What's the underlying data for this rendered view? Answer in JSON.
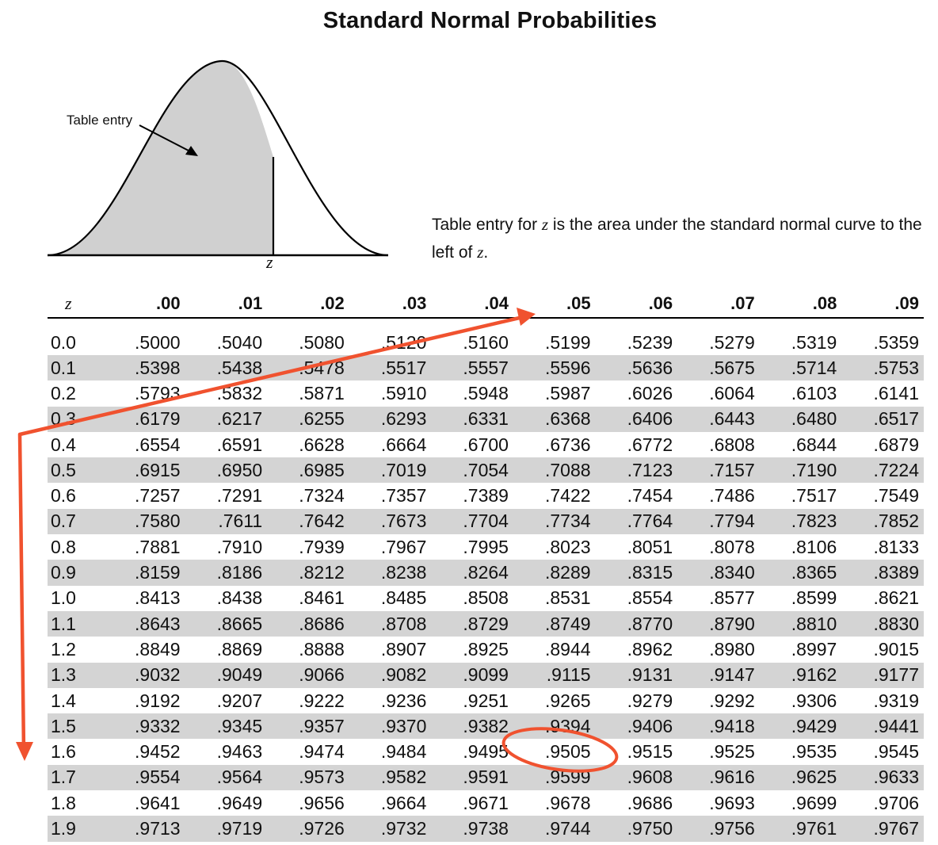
{
  "title": "Standard Normal Probabilities",
  "figure": {
    "entry_label": "Table entry",
    "z_label": "z"
  },
  "caption": {
    "before_z": "Table entry for ",
    "z1": "z",
    "middle": " is the area under the standard normal curve to the left of ",
    "z2": "z",
    "end": "."
  },
  "table": {
    "z_header": "z",
    "columns": [
      ".00",
      ".01",
      ".02",
      ".03",
      ".04",
      ".05",
      ".06",
      ".07",
      ".08",
      ".09"
    ],
    "rows": [
      {
        "z": "0.0",
        "values": [
          ".5000",
          ".5040",
          ".5080",
          ".5120",
          ".5160",
          ".5199",
          ".5239",
          ".5279",
          ".5319",
          ".5359"
        ]
      },
      {
        "z": "0.1",
        "values": [
          ".5398",
          ".5438",
          ".5478",
          ".5517",
          ".5557",
          ".5596",
          ".5636",
          ".5675",
          ".5714",
          ".5753"
        ]
      },
      {
        "z": "0.2",
        "values": [
          ".5793",
          ".5832",
          ".5871",
          ".5910",
          ".5948",
          ".5987",
          ".6026",
          ".6064",
          ".6103",
          ".6141"
        ]
      },
      {
        "z": "0.3",
        "values": [
          ".6179",
          ".6217",
          ".6255",
          ".6293",
          ".6331",
          ".6368",
          ".6406",
          ".6443",
          ".6480",
          ".6517"
        ]
      },
      {
        "z": "0.4",
        "values": [
          ".6554",
          ".6591",
          ".6628",
          ".6664",
          ".6700",
          ".6736",
          ".6772",
          ".6808",
          ".6844",
          ".6879"
        ]
      },
      {
        "z": "0.5",
        "values": [
          ".6915",
          ".6950",
          ".6985",
          ".7019",
          ".7054",
          ".7088",
          ".7123",
          ".7157",
          ".7190",
          ".7224"
        ]
      },
      {
        "z": "0.6",
        "values": [
          ".7257",
          ".7291",
          ".7324",
          ".7357",
          ".7389",
          ".7422",
          ".7454",
          ".7486",
          ".7517",
          ".7549"
        ]
      },
      {
        "z": "0.7",
        "values": [
          ".7580",
          ".7611",
          ".7642",
          ".7673",
          ".7704",
          ".7734",
          ".7764",
          ".7794",
          ".7823",
          ".7852"
        ]
      },
      {
        "z": "0.8",
        "values": [
          ".7881",
          ".7910",
          ".7939",
          ".7967",
          ".7995",
          ".8023",
          ".8051",
          ".8078",
          ".8106",
          ".8133"
        ]
      },
      {
        "z": "0.9",
        "values": [
          ".8159",
          ".8186",
          ".8212",
          ".8238",
          ".8264",
          ".8289",
          ".8315",
          ".8340",
          ".8365",
          ".8389"
        ]
      },
      {
        "z": "1.0",
        "values": [
          ".8413",
          ".8438",
          ".8461",
          ".8485",
          ".8508",
          ".8531",
          ".8554",
          ".8577",
          ".8599",
          ".8621"
        ]
      },
      {
        "z": "1.1",
        "values": [
          ".8643",
          ".8665",
          ".8686",
          ".8708",
          ".8729",
          ".8749",
          ".8770",
          ".8790",
          ".8810",
          ".8830"
        ]
      },
      {
        "z": "1.2",
        "values": [
          ".8849",
          ".8869",
          ".8888",
          ".8907",
          ".8925",
          ".8944",
          ".8962",
          ".8980",
          ".8997",
          ".9015"
        ]
      },
      {
        "z": "1.3",
        "values": [
          ".9032",
          ".9049",
          ".9066",
          ".9082",
          ".9099",
          ".9115",
          ".9131",
          ".9147",
          ".9162",
          ".9177"
        ]
      },
      {
        "z": "1.4",
        "values": [
          ".9192",
          ".9207",
          ".9222",
          ".9236",
          ".9251",
          ".9265",
          ".9279",
          ".9292",
          ".9306",
          ".9319"
        ]
      },
      {
        "z": "1.5",
        "values": [
          ".9332",
          ".9345",
          ".9357",
          ".9370",
          ".9382",
          ".9394",
          ".9406",
          ".9418",
          ".9429",
          ".9441"
        ]
      },
      {
        "z": "1.6",
        "values": [
          ".9452",
          ".9463",
          ".9474",
          ".9484",
          ".9495",
          ".9505",
          ".9515",
          ".9525",
          ".9535",
          ".9545"
        ]
      },
      {
        "z": "1.7",
        "values": [
          ".9554",
          ".9564",
          ".9573",
          ".9582",
          ".9591",
          ".9599",
          ".9608",
          ".9616",
          ".9625",
          ".9633"
        ]
      },
      {
        "z": "1.8",
        "values": [
          ".9641",
          ".9649",
          ".9656",
          ".9664",
          ".9671",
          ".9678",
          ".9686",
          ".9693",
          ".9699",
          ".9706"
        ]
      },
      {
        "z": "1.9",
        "values": [
          ".9713",
          ".9719",
          ".9726",
          ".9732",
          ".9738",
          ".9744",
          ".9750",
          ".9756",
          ".9761",
          ".9767"
        ]
      }
    ]
  },
  "annotations": {
    "color": "#f0522f",
    "highlight_row": "1.6",
    "highlight_column": ".05",
    "highlight_value": ".9505"
  },
  "colors": {
    "shaded_area": "#d0d0d0",
    "row_stripe": "#d4d4d4"
  }
}
